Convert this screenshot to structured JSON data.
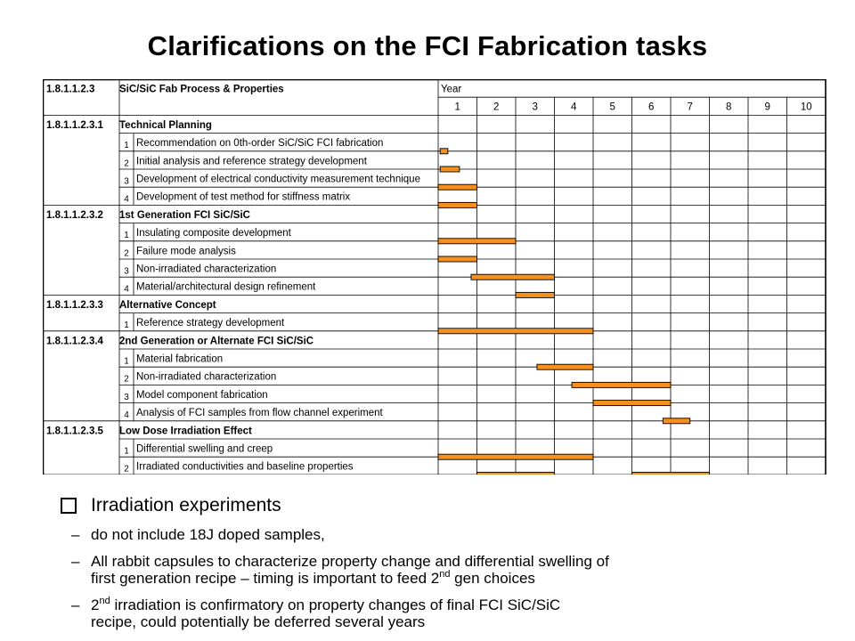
{
  "title": "Clarifications on the FCI Fabrication tasks",
  "gantt": {
    "header_id": "1.8.1.1.2.3",
    "header_title": "SiC/SiC Fab Process & Properties",
    "year_label": "Year",
    "years": [
      "1",
      "2",
      "3",
      "4",
      "5",
      "6",
      "7",
      "8",
      "9",
      "10"
    ],
    "bar_color": "#f5901e",
    "sections": [
      {
        "id": "1.8.1.1.2.3.1",
        "title": "Technical Planning",
        "tasks": [
          {
            "num": "1",
            "label": "Recommendation on 0th-order SiC/SiC FCI fabrication",
            "bars": [
              [
                0.05,
                0.25
              ]
            ]
          },
          {
            "num": "2",
            "label": "Initial analysis and reference strategy development",
            "bars": [
              [
                0.05,
                0.55
              ]
            ]
          },
          {
            "num": "3",
            "label": "Development of electrical conductivity measurement technique",
            "bars": [
              [
                0,
                1
              ]
            ]
          },
          {
            "num": "4",
            "label": "Development of test method for stiffness matrix",
            "bars": [
              [
                0,
                1
              ]
            ]
          }
        ]
      },
      {
        "id": "1.8.1.1.2.3.2",
        "title": "1st Generation FCI SiC/SiC",
        "tasks": [
          {
            "num": "1",
            "label": "Insulating composite development",
            "bars": [
              [
                0,
                2
              ]
            ]
          },
          {
            "num": "2",
            "label": "Failure mode analysis",
            "bars": [
              [
                0,
                1
              ]
            ]
          },
          {
            "num": "3",
            "label": "Non-irradiated characterization",
            "bars": [
              [
                0.85,
                3
              ]
            ]
          },
          {
            "num": "4",
            "label": "Material/architectural design refinement",
            "bars": [
              [
                2,
                3
              ]
            ]
          }
        ]
      },
      {
        "id": "1.8.1.1.2.3.3",
        "title": "Alternative Concept",
        "tasks": [
          {
            "num": "1",
            "label": "Reference strategy development",
            "bars": [
              [
                0,
                4
              ]
            ]
          }
        ]
      },
      {
        "id": "1.8.1.1.2.3.4",
        "title": "2nd Generation or Alternate FCI SiC/SiC",
        "tasks": [
          {
            "num": "1",
            "label": "Material fabrication",
            "bars": [
              [
                2.55,
                4
              ]
            ]
          },
          {
            "num": "2",
            "label": "Non-irradiated characterization",
            "bars": [
              [
                3.45,
                6
              ]
            ]
          },
          {
            "num": "3",
            "label": "Model component fabrication",
            "bars": [
              [
                4,
                6
              ]
            ]
          },
          {
            "num": "4",
            "label": "Analysis of FCI samples from flow channel experiment",
            "bars": [
              [
                5.8,
                6.5
              ]
            ]
          }
        ]
      },
      {
        "id": "1.8.1.1.2.3.5",
        "title": "Low Dose Irradiation Effect",
        "tasks": [
          {
            "num": "1",
            "label": "Differential swelling and creep",
            "bars": [
              [
                0,
                4
              ]
            ]
          },
          {
            "num": "2",
            "label": "Irradiated conductivities and baseline properties",
            "bars": [
              [
                1,
                3
              ],
              [
                5,
                7
              ]
            ]
          }
        ]
      }
    ]
  },
  "bullets": {
    "heading": "Irradiation experiments",
    "items": [
      {
        "text": "do not include 18J doped samples,"
      },
      {
        "line1": "All rabbit capsules to characterize property change and differential swelling of",
        "line2_a": "first generation recipe – timing is important to feed 2",
        "line2_sup": "nd",
        "line2_b": " gen choices"
      },
      {
        "line1_a": "2",
        "line1_sup": "nd",
        "line1_b": " irradiation is confirmatory on property changes of final FCI SiC/SiC",
        "line2": "recipe, could potentially be deferred several years"
      }
    ]
  }
}
